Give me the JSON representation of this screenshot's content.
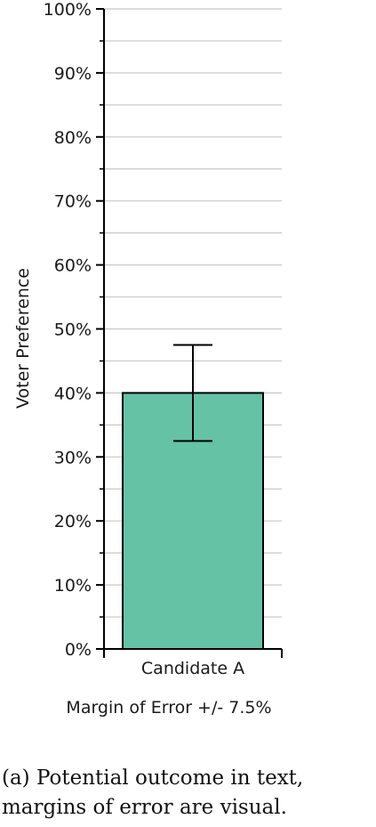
{
  "chart_data": {
    "type": "bar",
    "categories": [
      "Candidate A"
    ],
    "values": [
      40
    ],
    "error_margin": 7.5,
    "ylabel": "Voter Preference",
    "xlabel": "Margin of Error +/- 7.5%",
    "ylim": [
      0,
      100
    ],
    "yticks": [
      "0%",
      "10%",
      "20%",
      "30%",
      "40%",
      "50%",
      "60%",
      "70%",
      "80%",
      "90%",
      "100%"
    ],
    "grid": true,
    "bar_color": "#66c2a5"
  },
  "caption": "(a) Potential outcome in text, margins of error are visual."
}
